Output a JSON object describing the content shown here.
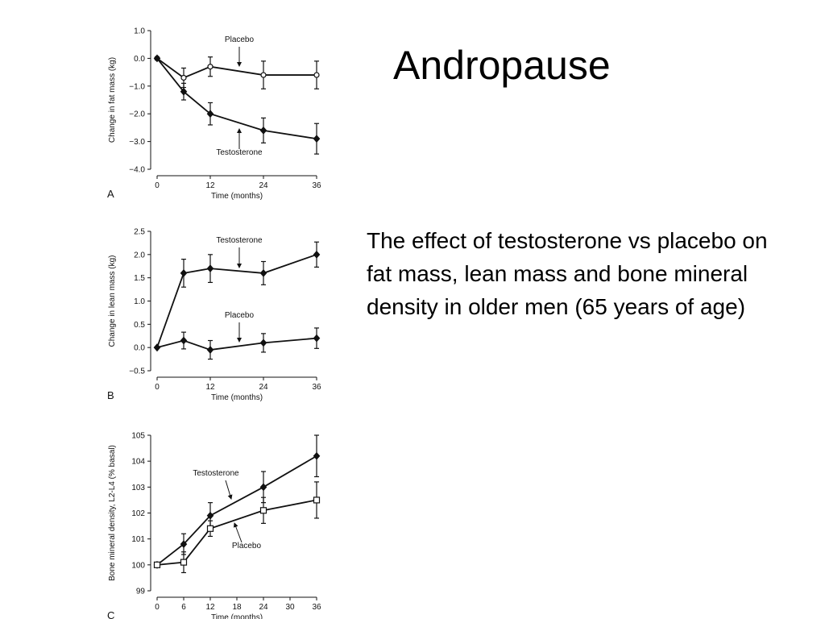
{
  "slide": {
    "title": "Andropause",
    "body": "The effect of testosterone vs placebo on fat mass, lean mass and bone mineral density in older men (65 years of age)"
  },
  "chart_data": [
    {
      "type": "line",
      "panel": "A",
      "ylabel": "Change in fat mass (kg)",
      "xlabel": "Time (months)",
      "xlim": [
        0,
        36
      ],
      "xticks": [
        0,
        12,
        24,
        36
      ],
      "ylim": [
        -4,
        1
      ],
      "yticks": [
        {
          "value": 1,
          "label": "1.0"
        },
        {
          "value": 0,
          "label": "0.0"
        },
        {
          "value": -1,
          "label": "−1.0"
        },
        {
          "value": -2,
          "label": "−2.0"
        },
        {
          "value": -3,
          "label": "−3.0"
        },
        {
          "value": -4,
          "label": "−4.0"
        }
      ],
      "x": [
        0,
        6,
        12,
        24,
        36
      ],
      "series": [
        {
          "name": "Placebo",
          "color": "#111111",
          "marker": "circle-open",
          "values": [
            0,
            -0.7,
            -0.3,
            -0.6,
            -0.6
          ],
          "errors": [
            null,
            0.35,
            0.35,
            0.5,
            0.5
          ]
        },
        {
          "name": "Testosterone",
          "color": "#111111",
          "marker": "diamond",
          "values": [
            0,
            -1.2,
            -2.0,
            -2.6,
            -2.9
          ],
          "errors": [
            null,
            0.3,
            0.4,
            0.45,
            0.55
          ]
        }
      ],
      "annotations": [
        "Placebo",
        "Testosterone"
      ]
    },
    {
      "type": "line",
      "panel": "B",
      "ylabel": "Change in lean mass (kg)",
      "xlabel": "Time (months)",
      "xlim": [
        0,
        36
      ],
      "xticks": [
        0,
        12,
        24,
        36
      ],
      "ylim": [
        -0.5,
        2.5
      ],
      "yticks": [
        {
          "value": 2.5,
          "label": "2.5"
        },
        {
          "value": 2,
          "label": "2.0"
        },
        {
          "value": 1.5,
          "label": "1.5"
        },
        {
          "value": 1,
          "label": "1.0"
        },
        {
          "value": 0.5,
          "label": "0.5"
        },
        {
          "value": 0,
          "label": "0.0"
        },
        {
          "value": -0.5,
          "label": "−0.5"
        }
      ],
      "x": [
        0,
        6,
        12,
        24,
        36
      ],
      "series": [
        {
          "name": "Testosterone",
          "color": "#111111",
          "marker": "diamond",
          "values": [
            0,
            1.6,
            1.7,
            1.6,
            2.0
          ],
          "errors": [
            null,
            0.3,
            0.3,
            0.25,
            0.27
          ]
        },
        {
          "name": "Placebo",
          "color": "#111111",
          "marker": "diamond",
          "values": [
            0,
            0.15,
            -0.05,
            0.1,
            0.2
          ],
          "errors": [
            null,
            0.18,
            0.2,
            0.2,
            0.22
          ]
        }
      ],
      "annotations": [
        "Testosterone",
        "Placebo"
      ]
    },
    {
      "type": "line",
      "panel": "C",
      "ylabel": "Bone mineral density, L2-L4 (% basal)",
      "xlabel": "Time (months)",
      "xlim": [
        0,
        36
      ],
      "xticks": [
        0,
        6,
        12,
        18,
        24,
        30,
        36
      ],
      "ylim": [
        99,
        105
      ],
      "yticks": [
        105,
        104,
        103,
        102,
        101,
        100,
        99
      ],
      "x": [
        0,
        6,
        12,
        24,
        36
      ],
      "series": [
        {
          "name": "Testosterone",
          "color": "#111111",
          "marker": "diamond",
          "values": [
            100,
            100.8,
            101.9,
            103.0,
            104.2
          ],
          "errors": [
            null,
            0.4,
            0.5,
            0.6,
            0.8
          ]
        },
        {
          "name": "Placebo",
          "color": "#111111",
          "marker": "square-open",
          "values": [
            100,
            100.1,
            101.4,
            102.1,
            102.5
          ],
          "errors": [
            null,
            0.4,
            0.3,
            0.5,
            0.7
          ]
        }
      ],
      "annotations": [
        "Testosterone",
        "Placebo"
      ]
    }
  ]
}
